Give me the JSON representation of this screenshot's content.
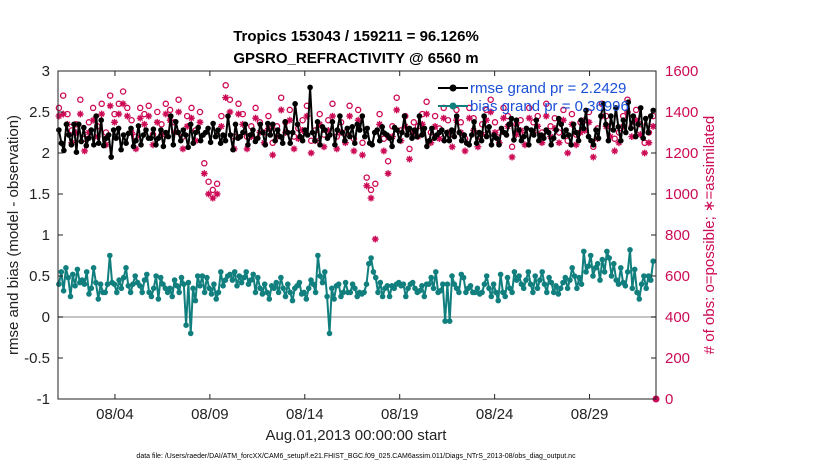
{
  "chart_data": {
    "type": "line",
    "title_line1": "Tropics 153043 / 159211 = 96.126%",
    "title_line2": "GPSRO_REFRACTIVITY @ 6560 m",
    "ylabel_left": "rmse and bias (model - observation)",
    "ylabel_right": "# of obs: o=possible; ∗=assimilated",
    "xlabel": "Aug.01,2013 00:00:00 start",
    "footer": "data file: /Users/raeder/DAI/ATM_forcXX/CAM6_setup/f.e21.FHIST_BGC.f09_025.CAM6assim.011/Diags_NTrS_2013-08/obs_diag_output.nc",
    "xlim": [
      1,
      32.5
    ],
    "x_ticks": [
      4,
      9,
      14,
      19,
      24,
      29
    ],
    "x_tick_labels": [
      "08/04",
      "08/09",
      "08/14",
      "08/19",
      "08/24",
      "08/29"
    ],
    "ylim_left": [
      -1,
      3
    ],
    "y_ticks_left": [
      "-1",
      "-0.5",
      "0",
      "0.5",
      "1",
      "1.5",
      "2",
      "2.5",
      "3"
    ],
    "ylim_right": [
      0,
      1600
    ],
    "y_ticks_right": [
      "0",
      "200",
      "400",
      "600",
      "800",
      "1000",
      "1200",
      "1400",
      "1600"
    ],
    "colors": {
      "rmse": "#000000",
      "bias": "#127f7f",
      "obs": "#cc0a55",
      "zero": "#b0b0b0",
      "legend_text": "#1a4fd6"
    },
    "series": [
      {
        "name": "rmse grand pr = 2.2429",
        "key": "rmse",
        "values": [
          2.28,
          2.12,
          2.03,
          2.35,
          2.22,
          2.1,
          2.35,
          2.01,
          2.35,
          2.14,
          2.31,
          2.09,
          2.18,
          2.28,
          2.1,
          2.45,
          2.12,
          2.4,
          2.09,
          2.18,
          2.22,
          1.95,
          2.28,
          2.18,
          2.3,
          2.04,
          2.22,
          2.12,
          2.24,
          2.3,
          2.08,
          2.15,
          2.33,
          2.1,
          2.22,
          2.28,
          2.18,
          2.18,
          2.29,
          2.1,
          2.18,
          2.28,
          2.08,
          2.25,
          2.2,
          2.45,
          2.1,
          2.38,
          2.25,
          2.15,
          2.28,
          2.22,
          2.07,
          2.35,
          2.12,
          2.25,
          2.31,
          2.15,
          2.22,
          2.25,
          2.3,
          2.13,
          2.36,
          2.2,
          2.28,
          2.12,
          2.22,
          2.15,
          2.45,
          2.22,
          2.04,
          2.35,
          2.18,
          2.2,
          2.25,
          2.35,
          2.1,
          2.22,
          2.28,
          2.14,
          2.18,
          2.35,
          2.25,
          2.1,
          2.36,
          2.22,
          2.35,
          2.15,
          2.28,
          2.2,
          2.12,
          2.38,
          2.25,
          2.12,
          2.25,
          2.6,
          2.35,
          2.2,
          2.15,
          2.28,
          2.22,
          2.8,
          2.25,
          2.15,
          2.38,
          2.1,
          2.32,
          2.28,
          2.18,
          2.22,
          2.38,
          2.1,
          2.28,
          2.45,
          2.25,
          2.15,
          2.3,
          2.2,
          2.32,
          2.12,
          2.35,
          2.28,
          2.45,
          2.2,
          2.3,
          2.12,
          2.1,
          2.25,
          2.28,
          2.15,
          2.32,
          2.24,
          2.22,
          2.18,
          2.08,
          2.31,
          2.28,
          2.15,
          2.25,
          2.45,
          2.22,
          2.3,
          2.18,
          2.28,
          2.2,
          2.45,
          2.22,
          2.3,
          2.08,
          2.15,
          2.3,
          2.18,
          2.22,
          2.25,
          2.28,
          2.15,
          2.25,
          2.15,
          2.28,
          2.2,
          2.45,
          2.25,
          2.15,
          2.22,
          2.12,
          2.1,
          2.22,
          2.38,
          2.12,
          2.25,
          2.15,
          2.45,
          2.2,
          2.32,
          2.1,
          2.22,
          2.18,
          2.1,
          2.3,
          2.25,
          2.22,
          2.35,
          2.42,
          2.16,
          2.4,
          2.28,
          2.15,
          2.2,
          2.3,
          2.1,
          2.28,
          2.22,
          2.4,
          2.15,
          2.22,
          2.18,
          2.28,
          2.25,
          2.1,
          2.18,
          2.28,
          2.42,
          2.35,
          2.2,
          2.28,
          2.22,
          2.1,
          2.35,
          2.25,
          2.15,
          2.4,
          2.3,
          2.52,
          2.2,
          2.15,
          2.1,
          2.28,
          2.18,
          2.45,
          2.6,
          2.35,
          2.15,
          2.45,
          2.28,
          2.55,
          2.32,
          2.15,
          2.4,
          2.25,
          2.62,
          2.3,
          2.45,
          2.2,
          2.35,
          2.55,
          2.18,
          2.42,
          2.25,
          2.45,
          2.52
        ]
      },
      {
        "name": "bias grand pr = 0.36996",
        "key": "bias",
        "values": [
          0.4,
          0.55,
          0.32,
          0.6,
          0.48,
          0.25,
          0.52,
          0.38,
          0.58,
          0.42,
          0.45,
          0.4,
          0.55,
          0.28,
          0.35,
          0.6,
          0.42,
          0.22,
          0.4,
          0.3,
          0.3,
          0.4,
          0.75,
          0.42,
          0.4,
          0.3,
          0.45,
          0.35,
          0.48,
          0.6,
          0.38,
          0.3,
          0.4,
          0.5,
          0.42,
          0.38,
          0.3,
          0.45,
          0.52,
          0.3,
          0.25,
          0.35,
          0.5,
          0.22,
          0.48,
          0.4,
          0.35,
          0.3,
          0.35,
          0.25,
          0.45,
          0.38,
          0.3,
          0.48,
          0.4,
          -0.1,
          0.42,
          -0.2,
          0.35,
          0.2,
          0.5,
          0.38,
          0.5,
          0.3,
          0.48,
          0.35,
          0.28,
          0.4,
          0.22,
          0.3,
          0.55,
          0.38,
          0.45,
          0.5,
          0.52,
          0.45,
          0.55,
          0.38,
          0.5,
          0.42,
          0.48,
          0.55,
          0.4,
          0.45,
          0.52,
          0.3,
          0.48,
          0.35,
          0.28,
          0.4,
          0.3,
          0.22,
          0.38,
          0.35,
          0.42,
          0.3,
          0.48,
          0.35,
          0.25,
          0.4,
          0.3,
          0.2,
          0.35,
          0.38,
          0.42,
          0.28,
          0.3,
          0.22,
          0.35,
          0.45,
          0.4,
          0.3,
          0.75,
          0.5,
          0.42,
          0.55,
          0.25,
          -0.2,
          0.35,
          0.22,
          0.38,
          0.4,
          0.25,
          0.3,
          0.42,
          0.3,
          0.3,
          0.4,
          0.35,
          0.25,
          0.3,
          0.28,
          0.3,
          0.4,
          0.65,
          0.72,
          0.55,
          0.48,
          0.3,
          0.42,
          0.25,
          0.35,
          0.38,
          0.25,
          0.38,
          0.35,
          0.4,
          0.42,
          0.38,
          0.4,
          0.25,
          0.35,
          0.4,
          0.42,
          0.35,
          0.3,
          0.32,
          0.38,
          0.25,
          0.4,
          0.4,
          0.48,
          0.35,
          0.55,
          0.3,
          0.32,
          0.4,
          -0.05,
          0.4,
          -0.05,
          0.5,
          0.4,
          0.35,
          0.3,
          0.52,
          0.48,
          0.3,
          0.35,
          0.38,
          0.3,
          0.3,
          0.35,
          0.28,
          0.3,
          0.4,
          0.5,
          0.35,
          0.25,
          0.4,
          0.3,
          0.2,
          0.52,
          0.3,
          0.25,
          0.48,
          0.35,
          0.3,
          0.55,
          0.45,
          0.5,
          0.4,
          0.35,
          0.45,
          0.55,
          0.4,
          0.3,
          0.5,
          0.35,
          0.45,
          0.55,
          0.4,
          0.3,
          0.48,
          0.42,
          0.3,
          0.38,
          0.28,
          0.35,
          0.42,
          0.48,
          0.35,
          0.45,
          0.6,
          0.5,
          0.35,
          0.48,
          0.4,
          0.8,
          0.55,
          0.62,
          0.75,
          0.5,
          0.6,
          0.65,
          0.45,
          0.7,
          0.55,
          0.8,
          0.72,
          0.5,
          0.65,
          0.45,
          0.4,
          0.6,
          0.42,
          0.38,
          0.55,
          0.82,
          0.35,
          0.58,
          0.3,
          0.22,
          0.4,
          0.5,
          0.35,
          0.5,
          0.45,
          0.68
        ]
      },
      {
        "name": "possible",
        "key": "possible",
        "values": [
          1420,
          1480,
          1390,
          1310,
          1340,
          1460,
          1270,
          1350,
          1420,
          1330,
          1440,
          1300,
          1480,
          1390,
          1440,
          1500,
          1420,
          1360,
          1280,
          1420,
          1390,
          1430,
          1290,
          1400,
          1340,
          1440,
          1410,
          1350,
          1460,
          1280,
          1380,
          1420,
          1310,
          1400,
          1150,
          1060,
          1020,
          1050,
          1380,
          1530,
          1460,
          1280,
          1440,
          1390,
          1280,
          1330,
          1420,
          1350,
          1300,
          1380,
          1250,
          1330,
          1470,
          1350,
          1410,
          1280,
          1320,
          1360,
          1430,
          1260,
          1310,
          1390,
          1290,
          1360,
          1440,
          1280,
          1350,
          1300,
          1430,
          1270,
          1410,
          1250,
          1080,
          1020,
          1050,
          1390,
          1270,
          1160,
          1330,
          1470,
          1310,
          1380,
          1220,
          1350,
          1330,
          1390,
          1450,
          1300,
          1380,
          1320,
          1420,
          1360,
          1290,
          1410,
          1350,
          1270,
          1420,
          1370,
          1280,
          1340,
          1410,
          1460,
          1350,
          1300,
          1420,
          1380,
          1230,
          1340,
          1360,
          1290,
          1420,
          1350,
          1380,
          1300,
          1440,
          1330,
          1370,
          1300,
          1410,
          1260,
          1390,
          1290,
          1350,
          1360,
          1400,
          1230,
          1320,
          1440,
          1380,
          1330,
          1270,
          1300,
          1380,
          1460,
          1330,
          1410,
          1340,
          1250,
          1300,
          1380
        ]
      },
      {
        "name": "assimilated",
        "key": "assimilated",
        "values": [
          1380,
          1390,
          1340,
          1250,
          1300,
          1390,
          1210,
          1300,
          1360,
          1280,
          1390,
          1240,
          1430,
          1350,
          1390,
          1440,
          1380,
          1300,
          1220,
          1370,
          1340,
          1380,
          1240,
          1350,
          1290,
          1390,
          1360,
          1300,
          1400,
          1220,
          1330,
          1370,
          1260,
          1350,
          1100,
          1000,
          980,
          1000,
          1330,
          1470,
          1400,
          1220,
          1390,
          1340,
          1220,
          1280,
          1370,
          1300,
          1250,
          1320,
          1190,
          1280,
          1410,
          1300,
          1360,
          1220,
          1270,
          1310,
          1380,
          1200,
          1260,
          1340,
          1230,
          1310,
          1380,
          1220,
          1300,
          1250,
          1380,
          1210,
          1360,
          1190,
          1040,
          980,
          780,
          1340,
          1210,
          1100,
          1280,
          1410,
          1260,
          1330,
          1170,
          1300,
          1280,
          1340,
          1390,
          1250,
          1330,
          1270,
          1370,
          1300,
          1230,
          1360,
          1300,
          1210,
          1370,
          1310,
          1230,
          1290,
          1360,
          1400,
          1300,
          1250,
          1370,
          1330,
          1180,
          1290,
          1310,
          1240,
          1370,
          1300,
          1330,
          1250,
          1380,
          1280,
          1320,
          1250,
          1360,
          1200,
          1340,
          1240,
          1300,
          1310,
          1350,
          1180,
          1270,
          1380,
          1330,
          1280,
          1210,
          1250,
          1330,
          1400,
          1280,
          1360,
          1290,
          1200,
          1250,
          1330
        ]
      }
    ]
  }
}
